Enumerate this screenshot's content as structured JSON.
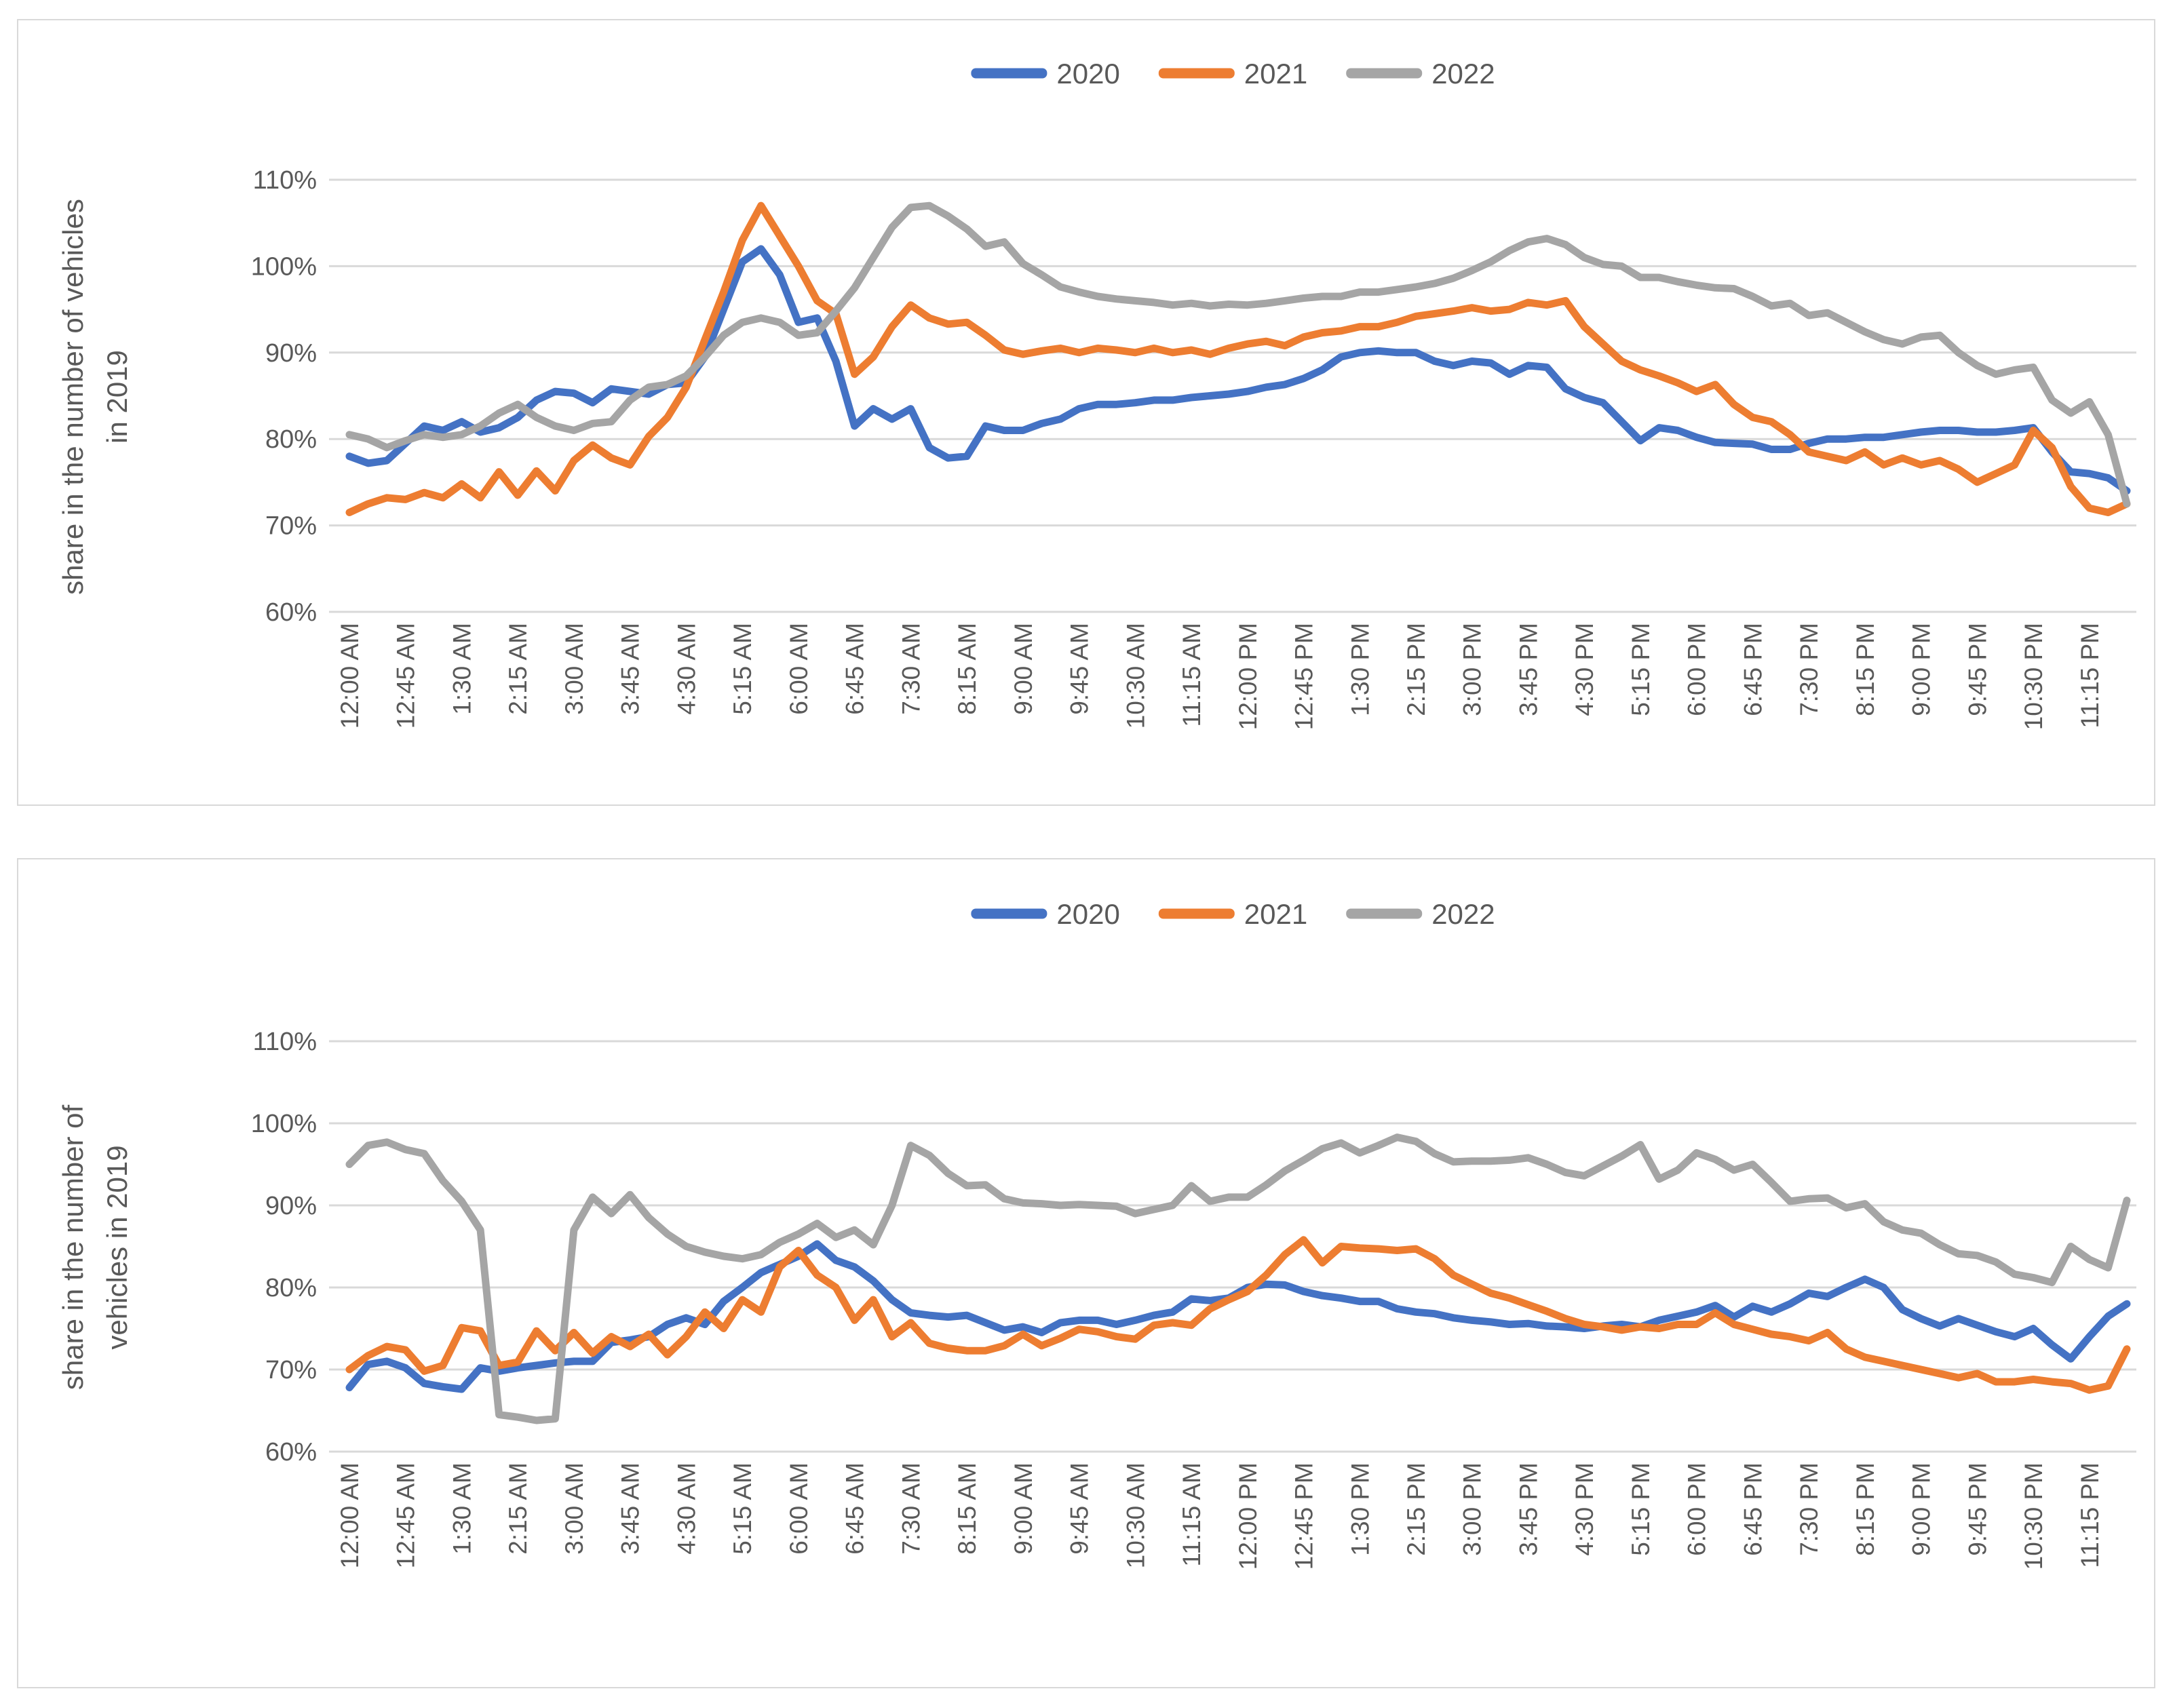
{
  "page": {
    "background": "#ffffff",
    "description": "Two stacked line charts comparing 2020, 2021, 2022 vehicle counts as share of 2019, by time of day"
  },
  "colors": {
    "s2020": "#4472c4",
    "s2021": "#ed7d31",
    "s2022": "#a5a5a5",
    "grid": "#d9d9d9",
    "panel_border": "#d9d9d9",
    "tick_text": "#595959",
    "axis_title_text": "#595959"
  },
  "legend": {
    "items": [
      {
        "label": "2020",
        "color": "#4472c4"
      },
      {
        "label": "2021",
        "color": "#ed7d31"
      },
      {
        "label": "2022",
        "color": "#a5a5a5"
      }
    ]
  },
  "chart_data": [
    {
      "type": "line",
      "title": "",
      "ylabel_line1": "share in the number of vehicles",
      "ylabel_line2": "in 2019",
      "ylim": [
        60,
        110
      ],
      "grid": true,
      "legend_position": "top-center",
      "y_ticks": [
        {
          "value": 110,
          "label": "110%"
        },
        {
          "value": 100,
          "label": "100%"
        },
        {
          "value": 90,
          "label": "90%"
        },
        {
          "value": 80,
          "label": "80%"
        },
        {
          "value": 70,
          "label": "70%"
        },
        {
          "value": 60,
          "label": "60%"
        }
      ],
      "x_tick_labels": [
        "12:00 AM",
        "12:45 AM",
        "1:30 AM",
        "2:15 AM",
        "3:00 AM",
        "3:45 AM",
        "4:30 AM",
        "5:15 AM",
        "6:00 AM",
        "6:45 AM",
        "7:30 AM",
        "8:15 AM",
        "9:00 AM",
        "9:45 AM",
        "10:30 AM",
        "11:15 AM",
        "12:00 PM",
        "12:45 PM",
        "1:30 PM",
        "2:15 PM",
        "3:00 PM",
        "3:45 PM",
        "4:30 PM",
        "5:15 PM",
        "6:00 PM",
        "6:45 PM",
        "7:30 PM",
        "8:15 PM",
        "9:00 PM",
        "9:45 PM",
        "10:30 PM",
        "11:15 PM"
      ],
      "x_tick_every": 3,
      "x": [
        "12:00 AM",
        "12:15 AM",
        "12:30 AM",
        "12:45 AM",
        "1:00 AM",
        "1:15 AM",
        "1:30 AM",
        "1:45 AM",
        "2:00 AM",
        "2:15 AM",
        "2:30 AM",
        "2:45 AM",
        "3:00 AM",
        "3:15 AM",
        "3:30 AM",
        "3:45 AM",
        "4:00 AM",
        "4:15 AM",
        "4:30 AM",
        "4:45 AM",
        "5:00 AM",
        "5:15 AM",
        "5:30 AM",
        "5:45 AM",
        "6:00 AM",
        "6:15 AM",
        "6:30 AM",
        "6:45 AM",
        "7:00 AM",
        "7:15 AM",
        "7:30 AM",
        "7:45 AM",
        "8:00 AM",
        "8:15 AM",
        "8:30 AM",
        "8:45 AM",
        "9:00 AM",
        "9:15 AM",
        "9:30 AM",
        "9:45 AM",
        "10:00 AM",
        "10:15 AM",
        "10:30 AM",
        "10:45 AM",
        "11:00 AM",
        "11:15 AM",
        "11:30 AM",
        "11:45 AM",
        "12:00 PM",
        "12:15 PM",
        "12:30 PM",
        "12:45 PM",
        "1:00 PM",
        "1:15 PM",
        "1:30 PM",
        "1:45 PM",
        "2:00 PM",
        "2:15 PM",
        "2:30 PM",
        "2:45 PM",
        "3:00 PM",
        "3:15 PM",
        "3:30 PM",
        "3:45 PM",
        "4:00 PM",
        "4:15 PM",
        "4:30 PM",
        "4:45 PM",
        "5:00 PM",
        "5:15 PM",
        "5:30 PM",
        "5:45 PM",
        "6:00 PM",
        "6:15 PM",
        "6:30 PM",
        "6:45 PM",
        "7:00 PM",
        "7:15 PM",
        "7:30 PM",
        "7:45 PM",
        "8:00 PM",
        "8:15 PM",
        "8:30 PM",
        "8:45 PM",
        "9:00 PM",
        "9:15 PM",
        "9:30 PM",
        "9:45 PM",
        "10:00 PM",
        "10:15 PM",
        "10:30 PM",
        "10:45 PM",
        "11:00 PM",
        "11:15 PM",
        "11:30 PM",
        "11:45 PM"
      ],
      "series": [
        {
          "name": "2020",
          "color": "#4472c4",
          "values": [
            78,
            77.2,
            77.5,
            79.5,
            81.5,
            81,
            82,
            80.8,
            81.3,
            82.5,
            84.5,
            85.5,
            85.3,
            84.2,
            85.8,
            85.5,
            85.2,
            86.3,
            86.5,
            89.5,
            95,
            100.5,
            102,
            99,
            93.5,
            94,
            89,
            81.5,
            83.5,
            82.3,
            83.5,
            79,
            77.8,
            78,
            81.5,
            81,
            81,
            81.8,
            82.3,
            83.5,
            84,
            84,
            84.2,
            84.5,
            84.5,
            84.8,
            85,
            85.2,
            85.5,
            86,
            86.3,
            87,
            88,
            89.5,
            90,
            90.2,
            90,
            90,
            89,
            88.5,
            89,
            88.8,
            87.5,
            88.5,
            88.3,
            85.8,
            84.8,
            84.2,
            82,
            79.8,
            81.3,
            81,
            80.2,
            79.6,
            79.5,
            79.4,
            78.8,
            78.8,
            79.5,
            80,
            80,
            80.2,
            80.2,
            80.5,
            80.8,
            81,
            81,
            80.8,
            80.8,
            81,
            81.3,
            78.5,
            76.2,
            76,
            75.5,
            74
          ]
        },
        {
          "name": "2021",
          "color": "#ed7d31",
          "values": [
            71.5,
            72.5,
            73.2,
            73,
            73.8,
            73.2,
            74.8,
            73.2,
            76.2,
            73.5,
            76.3,
            74,
            77.5,
            79.3,
            77.8,
            77,
            80.3,
            82.5,
            86,
            91.5,
            97,
            103,
            107,
            103.5,
            100,
            96,
            94.5,
            87.5,
            89.5,
            93,
            95.5,
            94,
            93.3,
            93.5,
            92,
            90.3,
            89.8,
            90.2,
            90.5,
            90,
            90.5,
            90.3,
            90,
            90.5,
            90,
            90.3,
            89.8,
            90.5,
            91,
            91.3,
            90.8,
            91.8,
            92.3,
            92.5,
            93,
            93,
            93.5,
            94.2,
            94.5,
            94.8,
            95.2,
            94.8,
            95,
            95.8,
            95.5,
            96,
            93,
            91,
            89,
            88,
            87.3,
            86.5,
            85.5,
            86.3,
            84,
            82.5,
            82,
            80.5,
            78.5,
            78,
            77.5,
            78.5,
            77,
            77.8,
            77,
            77.5,
            76.5,
            75,
            76,
            77,
            81,
            79,
            74.5,
            72,
            71.5,
            72.5
          ]
        },
        {
          "name": "2022",
          "color": "#a5a5a5",
          "values": [
            80.5,
            80,
            79,
            79.8,
            80.5,
            80.2,
            80.5,
            81.5,
            83,
            84,
            82.5,
            81.5,
            81,
            81.8,
            82,
            84.5,
            86,
            86.3,
            87.3,
            89.5,
            92,
            93.5,
            94,
            93.5,
            92,
            92.3,
            94.8,
            97.5,
            101,
            104.5,
            106.8,
            107,
            105.8,
            104.3,
            102.3,
            102.8,
            100.3,
            99,
            97.6,
            97,
            96.5,
            96.2,
            96,
            95.8,
            95.5,
            95.7,
            95.4,
            95.6,
            95.5,
            95.7,
            96,
            96.3,
            96.5,
            96.5,
            97,
            97,
            97.3,
            97.6,
            98,
            98.6,
            99.5,
            100.5,
            101.8,
            102.8,
            103.2,
            102.5,
            101,
            100.2,
            100,
            98.7,
            98.7,
            98.2,
            97.8,
            97.5,
            97.4,
            96.5,
            95.4,
            95.7,
            94.3,
            94.6,
            93.5,
            92.4,
            91.5,
            91,
            91.8,
            92,
            90,
            88.5,
            87.5,
            88,
            88.3,
            84.5,
            83,
            84.3,
            80.5,
            72.5
          ]
        }
      ]
    },
    {
      "type": "line",
      "title": "",
      "ylabel_line1": "share in the number of",
      "ylabel_line2": "vehicles in 2019",
      "ylim": [
        60,
        110
      ],
      "grid": true,
      "legend_position": "top-center",
      "y_ticks": [
        {
          "value": 110,
          "label": "110%"
        },
        {
          "value": 100,
          "label": "100%"
        },
        {
          "value": 90,
          "label": "90%"
        },
        {
          "value": 80,
          "label": "80%"
        },
        {
          "value": 70,
          "label": "70%"
        },
        {
          "value": 60,
          "label": "60%"
        }
      ],
      "x_tick_labels": [
        "12:00 AM",
        "12:45 AM",
        "1:30 AM",
        "2:15 AM",
        "3:00 AM",
        "3:45 AM",
        "4:30 AM",
        "5:15 AM",
        "6:00 AM",
        "6:45 AM",
        "7:30 AM",
        "8:15 AM",
        "9:00 AM",
        "9:45 AM",
        "10:30 AM",
        "11:15 AM",
        "12:00 PM",
        "12:45 PM",
        "1:30 PM",
        "2:15 PM",
        "3:00 PM",
        "3:45 PM",
        "4:30 PM",
        "5:15 PM",
        "6:00 PM",
        "6:45 PM",
        "7:30 PM",
        "8:15 PM",
        "9:00 PM",
        "9:45 PM",
        "10:30 PM",
        "11:15 PM"
      ],
      "x_tick_every": 3,
      "x": [
        "12:00 AM",
        "12:15 AM",
        "12:30 AM",
        "12:45 AM",
        "1:00 AM",
        "1:15 AM",
        "1:30 AM",
        "1:45 AM",
        "2:00 AM",
        "2:15 AM",
        "2:30 AM",
        "2:45 AM",
        "3:00 AM",
        "3:15 AM",
        "3:30 AM",
        "3:45 AM",
        "4:00 AM",
        "4:15 AM",
        "4:30 AM",
        "4:45 AM",
        "5:00 AM",
        "5:15 AM",
        "5:30 AM",
        "5:45 AM",
        "6:00 AM",
        "6:15 AM",
        "6:30 AM",
        "6:45 AM",
        "7:00 AM",
        "7:15 AM",
        "7:30 AM",
        "7:45 AM",
        "8:00 AM",
        "8:15 AM",
        "8:30 AM",
        "8:45 AM",
        "9:00 AM",
        "9:15 AM",
        "9:30 AM",
        "9:45 AM",
        "10:00 AM",
        "10:15 AM",
        "10:30 AM",
        "10:45 AM",
        "11:00 AM",
        "11:15 AM",
        "11:30 AM",
        "11:45 AM",
        "12:00 PM",
        "12:15 PM",
        "12:30 PM",
        "12:45 PM",
        "1:00 PM",
        "1:15 PM",
        "1:30 PM",
        "1:45 PM",
        "2:00 PM",
        "2:15 PM",
        "2:30 PM",
        "2:45 PM",
        "3:00 PM",
        "3:15 PM",
        "3:30 PM",
        "3:45 PM",
        "4:00 PM",
        "4:15 PM",
        "4:30 PM",
        "4:45 PM",
        "5:00 PM",
        "5:15 PM",
        "5:30 PM",
        "5:45 PM",
        "6:00 PM",
        "6:15 PM",
        "6:30 PM",
        "6:45 PM",
        "7:00 PM",
        "7:15 PM",
        "7:30 PM",
        "7:45 PM",
        "8:00 PM",
        "8:15 PM",
        "8:30 PM",
        "8:45 PM",
        "9:00 PM",
        "9:15 PM",
        "9:30 PM",
        "9:45 PM",
        "10:00 PM",
        "10:15 PM",
        "10:30 PM",
        "10:45 PM",
        "11:00 PM",
        "11:15 PM",
        "11:30 PM",
        "11:45 PM"
      ],
      "series": [
        {
          "name": "2020",
          "color": "#4472c4",
          "values": [
            67.8,
            70.6,
            71,
            70.2,
            68.3,
            67.9,
            67.6,
            70.2,
            69.8,
            70.2,
            70.5,
            70.8,
            71,
            71,
            73.3,
            73.6,
            74,
            75.5,
            76.3,
            75.5,
            78.3,
            80,
            81.8,
            82.8,
            83.8,
            85.3,
            83.3,
            82.5,
            80.8,
            78.5,
            76.9,
            76.6,
            76.4,
            76.6,
            75.7,
            74.8,
            75.2,
            74.5,
            75.7,
            76,
            76,
            75.5,
            76,
            76.6,
            77,
            78.6,
            78.4,
            78.7,
            80,
            80.4,
            80.3,
            79.5,
            79,
            78.7,
            78.3,
            78.3,
            77.4,
            77,
            76.8,
            76.3,
            76,
            75.8,
            75.5,
            75.6,
            75.3,
            75.2,
            75,
            75.3,
            75.5,
            75.2,
            76,
            76.5,
            77,
            77.8,
            76.4,
            77.7,
            77,
            78,
            79.3,
            78.9,
            80,
            81,
            80,
            77.3,
            76.2,
            75.3,
            76.2,
            75.4,
            74.6,
            74,
            75,
            73,
            71.3,
            74,
            76.5,
            78
          ]
        },
        {
          "name": "2021",
          "color": "#ed7d31",
          "values": [
            70,
            71.7,
            72.8,
            72.4,
            69.8,
            70.5,
            75.1,
            74.7,
            70.5,
            70.9,
            74.7,
            72.3,
            74.5,
            72,
            74,
            72.8,
            74.3,
            71.8,
            74,
            77,
            75,
            78.5,
            77,
            82.5,
            84.5,
            81.5,
            80,
            76,
            78.5,
            74,
            75.7,
            73.2,
            72.6,
            72.3,
            72.3,
            72.9,
            74.3,
            72.9,
            73.8,
            74.9,
            74.6,
            74,
            73.7,
            75.4,
            75.7,
            75.4,
            77.4,
            78.5,
            79.5,
            81.5,
            84,
            85.8,
            83,
            85,
            84.8,
            84.7,
            84.5,
            84.7,
            83.5,
            81.5,
            80.4,
            79.3,
            78.7,
            77.9,
            77.1,
            76.2,
            75.5,
            75.2,
            74.8,
            75.2,
            75,
            75.5,
            75.5,
            76.9,
            75.5,
            74.9,
            74.3,
            74,
            73.5,
            74.5,
            72.5,
            71.5,
            71,
            70.5,
            70,
            69.5,
            69,
            69.5,
            68.5,
            68.5,
            68.8,
            68.5,
            68.3,
            67.5,
            68,
            72.5
          ]
        },
        {
          "name": "2022",
          "color": "#a5a5a5",
          "values": [
            95,
            97.3,
            97.7,
            96.8,
            96.3,
            93,
            90.5,
            87,
            64.5,
            64.2,
            63.8,
            64,
            87,
            91,
            89,
            91.3,
            88.5,
            86.5,
            85,
            84.3,
            83.8,
            83.5,
            84,
            85.5,
            86.5,
            87.8,
            86.1,
            87,
            85.2,
            90,
            97.3,
            96.1,
            93.9,
            92.4,
            92.5,
            90.8,
            90.3,
            90.2,
            90,
            90.1,
            90,
            89.9,
            89,
            89.5,
            90,
            92.4,
            90.5,
            91,
            91,
            92.5,
            94.2,
            95.5,
            96.9,
            97.6,
            96.4,
            97.3,
            98.3,
            97.8,
            96.3,
            95.3,
            95.4,
            95.4,
            95.5,
            95.8,
            95,
            94,
            93.6,
            94.8,
            96,
            97.4,
            93.2,
            94.3,
            96.4,
            95.6,
            94.3,
            95,
            92.8,
            90.5,
            90.8,
            90.9,
            89.7,
            90.2,
            88,
            87,
            86.6,
            85.2,
            84.1,
            83.9,
            83.1,
            81.6,
            81.2,
            80.6,
            85,
            83.4,
            82.4,
            90.6
          ]
        }
      ]
    }
  ]
}
